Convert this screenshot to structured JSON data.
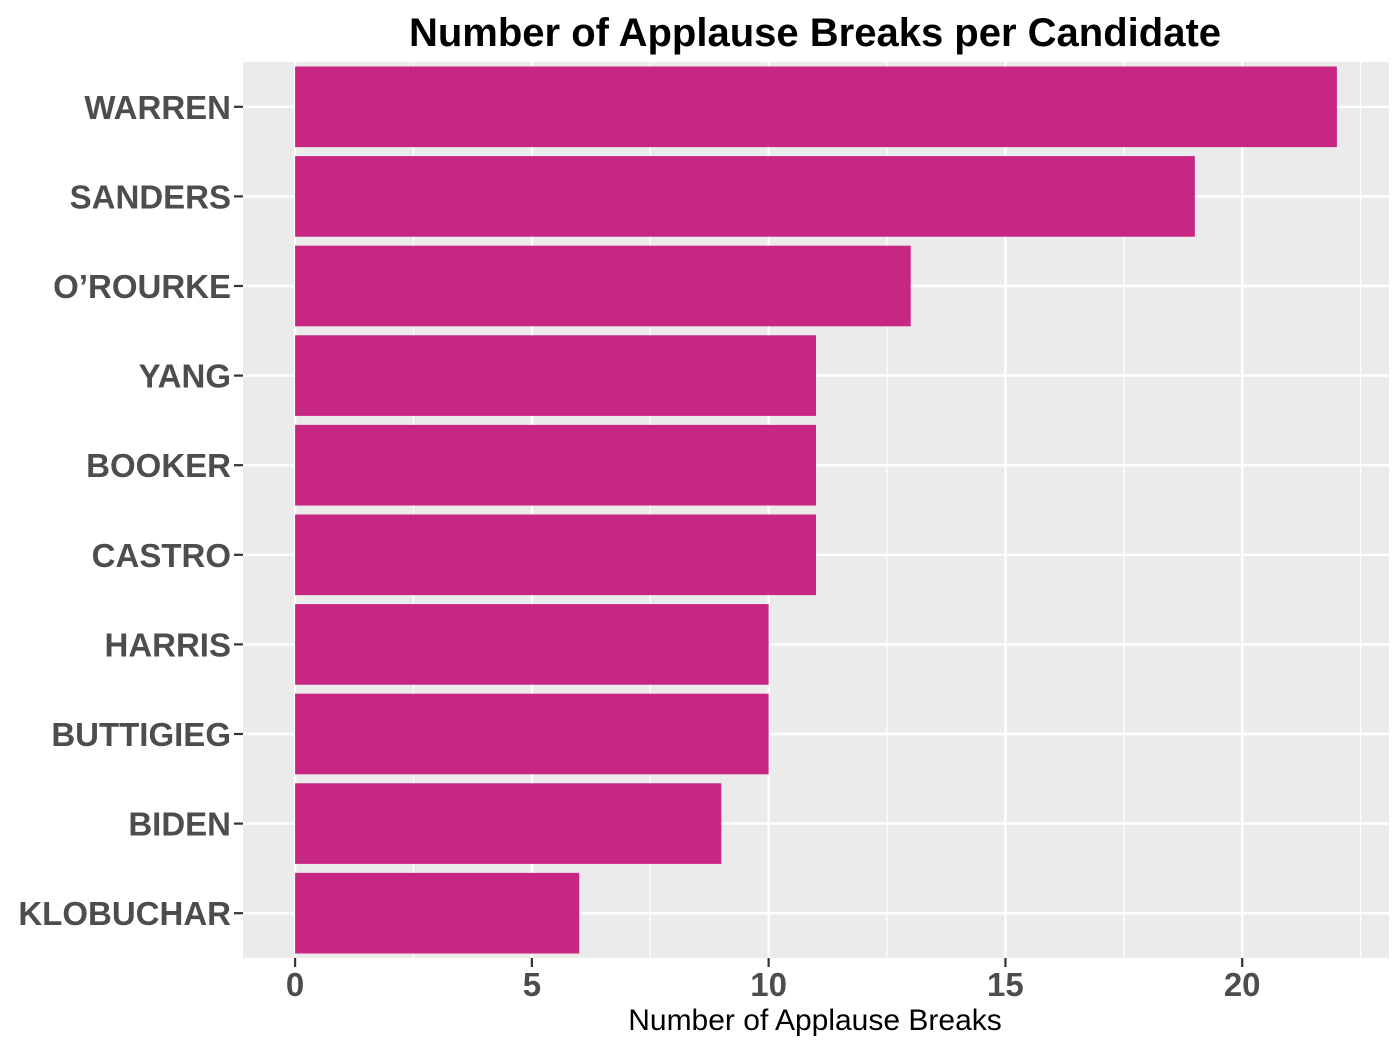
{
  "chart_data": {
    "type": "bar",
    "orientation": "horizontal",
    "title": "Number of Applause Breaks per Candidate",
    "xlabel": "Number of Applause Breaks",
    "ylabel": "",
    "categories": [
      "WARREN",
      "SANDERS",
      "O’ROURKE",
      "YANG",
      "BOOKER",
      "CASTRO",
      "HARRIS",
      "BUTTIGIEG",
      "BIDEN",
      "KLOBUCHAR"
    ],
    "values": [
      22,
      19,
      13,
      11,
      11,
      11,
      10,
      10,
      9,
      6
    ],
    "xlim": [
      -1.1,
      23.1
    ],
    "x_ticks": [
      0,
      5,
      10,
      15,
      20
    ],
    "x_tick_labels": [
      "0",
      "5",
      "10",
      "15",
      "20"
    ],
    "grid": true,
    "legend": "none",
    "colors": {
      "bar": "#c72783",
      "panel_background": "#ebebeb",
      "grid_line": "#ffffff",
      "tick_label": "#4d4d4d",
      "tick_mark": "#333333"
    }
  }
}
